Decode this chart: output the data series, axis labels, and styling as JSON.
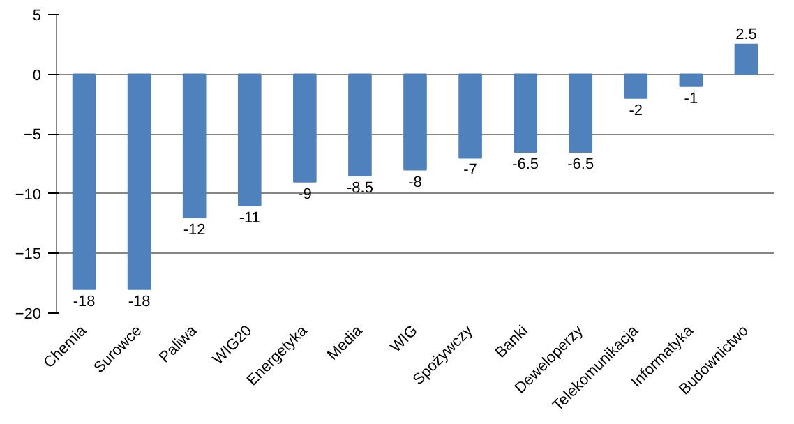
{
  "chart_data": {
    "type": "bar",
    "categories": [
      "Chemia",
      "Surowce",
      "Paliwa",
      "WIG20",
      "Energetyka",
      "Media",
      "WIG",
      "Spożywczy",
      "Banki",
      "Deweloperzy",
      "Telekomunikacja",
      "Informatyka",
      "Budownictwo"
    ],
    "values": [
      -18,
      -18,
      -12,
      -11,
      -9,
      -8.5,
      -8,
      -7,
      -6.5,
      -6.5,
      -2,
      -1,
      2.5
    ],
    "color": "#4f81bd",
    "ylim": [
      -20,
      5
    ],
    "yticks": [
      -20,
      -15,
      -10,
      -5,
      0,
      5
    ],
    "grid": "y",
    "data_labels": true
  }
}
